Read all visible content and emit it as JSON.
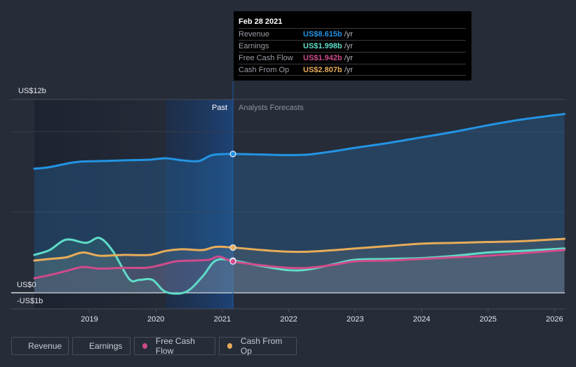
{
  "tooltip": {
    "date": "Feb 28 2021",
    "rows": [
      {
        "label": "Revenue",
        "value": "US$8.615b",
        "unit": "/yr",
        "color": "#2394e3"
      },
      {
        "label": "Earnings",
        "value": "US$1.998b",
        "unit": "/yr",
        "color": "#5fdcc8"
      },
      {
        "label": "Free Cash Flow",
        "value": "US$1.942b",
        "unit": "/yr",
        "color": "#d04b8c"
      },
      {
        "label": "Cash From Op",
        "value": "US$2.807b",
        "unit": "/yr",
        "color": "#e8ac5a"
      }
    ]
  },
  "legend": [
    {
      "label": "Revenue",
      "color": "#2394e3"
    },
    {
      "label": "Earnings",
      "color": "#5fdcc8"
    },
    {
      "label": "Free Cash Flow",
      "color": "#d04b8c"
    },
    {
      "label": "Cash From Op",
      "color": "#e8ac5a"
    }
  ],
  "chart_data": {
    "type": "line",
    "title": "",
    "xlabel": "",
    "ylabel": "",
    "y_tick_labels": {
      "top": "US$12b",
      "zero": "US$0",
      "bottom": "-US$1b"
    },
    "ylim": [
      -1,
      12
    ],
    "xlim": [
      2018.17,
      2026.15
    ],
    "x_ticks": [
      2019,
      2020,
      2021,
      2022,
      2023,
      2024,
      2025,
      2026
    ],
    "x_tick_labels": [
      "2019",
      "2020",
      "2021",
      "2022",
      "2023",
      "2024",
      "2025",
      "2026"
    ],
    "annotations": {
      "past_label": "Past",
      "forecast_label": "Analysts Forecasts",
      "past_region_start": 2020.15,
      "divider": 2021.16
    },
    "grid": true,
    "legend_position": "bottom-left",
    "series": [
      {
        "name": "Revenue",
        "color": "#2394e3",
        "points": [
          [
            2018.17,
            7.7
          ],
          [
            2018.4,
            7.8
          ],
          [
            2018.7,
            8.05
          ],
          [
            2018.9,
            8.15
          ],
          [
            2019.2,
            8.18
          ],
          [
            2019.5,
            8.22
          ],
          [
            2019.9,
            8.26
          ],
          [
            2020.15,
            8.35
          ],
          [
            2020.4,
            8.22
          ],
          [
            2020.65,
            8.18
          ],
          [
            2020.85,
            8.55
          ],
          [
            2021.16,
            8.615
          ],
          [
            2021.6,
            8.58
          ],
          [
            2022.0,
            8.55
          ],
          [
            2022.3,
            8.58
          ],
          [
            2022.7,
            8.8
          ],
          [
            2023.0,
            9.0
          ],
          [
            2023.5,
            9.3
          ],
          [
            2024.0,
            9.65
          ],
          [
            2024.5,
            10.0
          ],
          [
            2025.0,
            10.4
          ],
          [
            2025.5,
            10.75
          ],
          [
            2026.15,
            11.1
          ]
        ]
      },
      {
        "name": "Earnings",
        "color": "#5fdcc8",
        "points": [
          [
            2018.17,
            2.35
          ],
          [
            2018.4,
            2.65
          ],
          [
            2018.65,
            3.3
          ],
          [
            2018.95,
            3.1
          ],
          [
            2019.15,
            3.4
          ],
          [
            2019.35,
            2.6
          ],
          [
            2019.6,
            0.85
          ],
          [
            2019.75,
            0.8
          ],
          [
            2019.95,
            0.8
          ],
          [
            2020.15,
            0.05
          ],
          [
            2020.45,
            0.05
          ],
          [
            2020.7,
            1.0
          ],
          [
            2020.9,
            2.0
          ],
          [
            2021.16,
            1.998
          ],
          [
            2021.6,
            1.65
          ],
          [
            2022.0,
            1.4
          ],
          [
            2022.3,
            1.45
          ],
          [
            2022.7,
            1.8
          ],
          [
            2023.0,
            2.05
          ],
          [
            2023.5,
            2.1
          ],
          [
            2024.0,
            2.15
          ],
          [
            2024.5,
            2.3
          ],
          [
            2025.0,
            2.5
          ],
          [
            2025.5,
            2.6
          ],
          [
            2026.15,
            2.75
          ]
        ]
      },
      {
        "name": "Free Cash Flow",
        "color": "#d04b8c",
        "points": [
          [
            2018.17,
            0.9
          ],
          [
            2018.4,
            1.1
          ],
          [
            2018.65,
            1.35
          ],
          [
            2018.9,
            1.6
          ],
          [
            2019.15,
            1.5
          ],
          [
            2019.5,
            1.55
          ],
          [
            2019.85,
            1.55
          ],
          [
            2020.05,
            1.7
          ],
          [
            2020.3,
            1.95
          ],
          [
            2020.55,
            2.0
          ],
          [
            2020.8,
            2.05
          ],
          [
            2020.95,
            2.25
          ],
          [
            2021.16,
            1.942
          ],
          [
            2021.6,
            1.7
          ],
          [
            2022.0,
            1.55
          ],
          [
            2022.3,
            1.55
          ],
          [
            2022.7,
            1.75
          ],
          [
            2023.0,
            1.95
          ],
          [
            2023.5,
            2.0
          ],
          [
            2024.0,
            2.1
          ],
          [
            2024.5,
            2.2
          ],
          [
            2025.0,
            2.3
          ],
          [
            2025.5,
            2.45
          ],
          [
            2026.15,
            2.65
          ]
        ]
      },
      {
        "name": "Cash From Op",
        "color": "#e8ac5a",
        "points": [
          [
            2018.17,
            2.0
          ],
          [
            2018.4,
            2.1
          ],
          [
            2018.65,
            2.2
          ],
          [
            2018.9,
            2.5
          ],
          [
            2019.15,
            2.3
          ],
          [
            2019.5,
            2.35
          ],
          [
            2019.9,
            2.35
          ],
          [
            2020.15,
            2.6
          ],
          [
            2020.4,
            2.7
          ],
          [
            2020.7,
            2.65
          ],
          [
            2020.9,
            2.85
          ],
          [
            2021.16,
            2.807
          ],
          [
            2021.6,
            2.65
          ],
          [
            2022.0,
            2.55
          ],
          [
            2022.3,
            2.55
          ],
          [
            2022.7,
            2.65
          ],
          [
            2023.0,
            2.75
          ],
          [
            2023.5,
            2.9
          ],
          [
            2024.0,
            3.05
          ],
          [
            2024.5,
            3.1
          ],
          [
            2025.0,
            3.15
          ],
          [
            2025.5,
            3.2
          ],
          [
            2026.15,
            3.35
          ]
        ]
      }
    ]
  }
}
